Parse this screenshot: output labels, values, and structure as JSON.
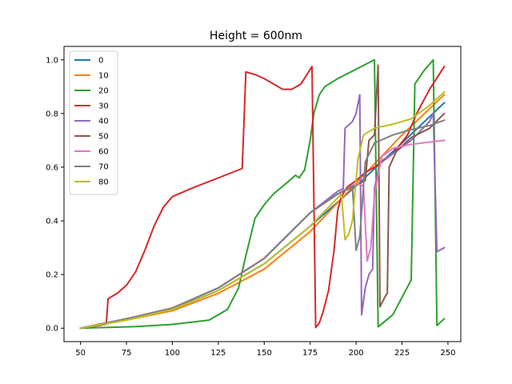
{
  "chart_data": {
    "type": "line",
    "title": "Height = 600nm",
    "xlabel": "",
    "ylabel": "",
    "xlim": [
      41,
      257
    ],
    "ylim": [
      -0.05,
      1.05
    ],
    "xticks": [
      50,
      75,
      100,
      125,
      150,
      175,
      200,
      225,
      250
    ],
    "yticks": [
      0.0,
      0.2,
      0.4,
      0.6,
      0.8,
      1.0
    ],
    "grid": false,
    "legend": "upper-left",
    "series": [
      {
        "name": "0",
        "color": "#1f77b4",
        "points": [
          [
            50,
            0
          ],
          [
            75,
            0.035
          ],
          [
            100,
            0.07
          ],
          [
            125,
            0.14
          ],
          [
            150,
            0.24
          ],
          [
            175,
            0.38
          ],
          [
            200,
            0.53
          ],
          [
            225,
            0.69
          ],
          [
            248,
            0.84
          ]
        ]
      },
      {
        "name": "10",
        "color": "#ff7f0e",
        "points": [
          [
            50,
            0
          ],
          [
            75,
            0.03
          ],
          [
            100,
            0.065
          ],
          [
            125,
            0.13
          ],
          [
            150,
            0.22
          ],
          [
            175,
            0.36
          ],
          [
            200,
            0.54
          ],
          [
            225,
            0.72
          ],
          [
            248,
            0.87
          ]
        ]
      },
      {
        "name": "20",
        "color": "#2ca02c",
        "points": [
          [
            50,
            0
          ],
          [
            80,
            0.006
          ],
          [
            100,
            0.014
          ],
          [
            120,
            0.03
          ],
          [
            130,
            0.07
          ],
          [
            136,
            0.15
          ],
          [
            140,
            0.27
          ],
          [
            145,
            0.41
          ],
          [
            150,
            0.46
          ],
          [
            155,
            0.5
          ],
          [
            162,
            0.54
          ],
          [
            167,
            0.57
          ],
          [
            169,
            0.56
          ],
          [
            172,
            0.59
          ],
          [
            175,
            0.7
          ],
          [
            177,
            0.8
          ],
          [
            180,
            0.87
          ],
          [
            183,
            0.9
          ],
          [
            190,
            0.93
          ],
          [
            200,
            0.965
          ],
          [
            210,
            1.0
          ],
          [
            212,
            0.005
          ],
          [
            220,
            0.05
          ],
          [
            230,
            0.18
          ],
          [
            232,
            0.91
          ],
          [
            237,
            0.96
          ],
          [
            242,
            1.0
          ],
          [
            244,
            0.01
          ],
          [
            248,
            0.035
          ]
        ]
      },
      {
        "name": "30",
        "color": "#d62728",
        "points": [
          [
            50,
            0
          ],
          [
            60,
            0.01
          ],
          [
            64,
            0.015
          ],
          [
            65,
            0.11
          ],
          [
            70,
            0.13
          ],
          [
            75,
            0.16
          ],
          [
            80,
            0.21
          ],
          [
            85,
            0.29
          ],
          [
            90,
            0.38
          ],
          [
            95,
            0.45
          ],
          [
            100,
            0.49
          ],
          [
            110,
            0.52
          ],
          [
            125,
            0.56
          ],
          [
            138,
            0.595
          ],
          [
            140,
            0.955
          ],
          [
            145,
            0.945
          ],
          [
            150,
            0.93
          ],
          [
            160,
            0.89
          ],
          [
            165,
            0.89
          ],
          [
            170,
            0.91
          ],
          [
            176,
            0.975
          ],
          [
            178,
            0.002
          ],
          [
            180,
            0.02
          ],
          [
            182,
            0.06
          ],
          [
            185,
            0.14
          ],
          [
            188,
            0.29
          ],
          [
            190,
            0.44
          ],
          [
            192,
            0.49
          ],
          [
            195,
            0.525
          ],
          [
            200,
            0.55
          ],
          [
            205,
            0.58
          ],
          [
            210,
            0.6
          ],
          [
            220,
            0.65
          ],
          [
            228,
            0.72
          ],
          [
            233,
            0.8
          ],
          [
            240,
            0.89
          ],
          [
            248,
            0.975
          ]
        ]
      },
      {
        "name": "40",
        "color": "#9467bd",
        "points": [
          [
            50,
            0
          ],
          [
            75,
            0.035
          ],
          [
            100,
            0.075
          ],
          [
            125,
            0.15
          ],
          [
            150,
            0.26
          ],
          [
            175,
            0.43
          ],
          [
            190,
            0.51
          ],
          [
            193,
            0.52
          ],
          [
            194,
            0.745
          ],
          [
            198,
            0.77
          ],
          [
            200,
            0.8
          ],
          [
            202,
            0.87
          ],
          [
            203,
            0.05
          ],
          [
            205,
            0.15
          ],
          [
            207,
            0.2
          ],
          [
            209,
            0.22
          ],
          [
            210,
            0.52
          ],
          [
            213,
            0.62
          ],
          [
            220,
            0.65
          ],
          [
            230,
            0.7
          ],
          [
            240,
            0.77
          ],
          [
            242,
            0.8
          ],
          [
            244,
            0.285
          ],
          [
            248,
            0.3
          ]
        ]
      },
      {
        "name": "50",
        "color": "#8c564b",
        "points": [
          [
            50,
            0
          ],
          [
            75,
            0.035
          ],
          [
            100,
            0.075
          ],
          [
            125,
            0.15
          ],
          [
            150,
            0.26
          ],
          [
            175,
            0.43
          ],
          [
            190,
            0.5
          ],
          [
            205,
            0.55
          ],
          [
            207,
            0.7
          ],
          [
            210,
            0.72
          ],
          [
            212,
            0.98
          ],
          [
            213,
            0.08
          ],
          [
            216,
            0.12
          ],
          [
            217,
            0.13
          ],
          [
            218,
            0.6
          ],
          [
            222,
            0.66
          ],
          [
            230,
            0.71
          ],
          [
            240,
            0.745
          ],
          [
            248,
            0.8
          ]
        ]
      },
      {
        "name": "60",
        "color": "#e377c2",
        "points": [
          [
            50,
            0
          ],
          [
            75,
            0.035
          ],
          [
            100,
            0.075
          ],
          [
            125,
            0.15
          ],
          [
            150,
            0.26
          ],
          [
            175,
            0.43
          ],
          [
            190,
            0.5
          ],
          [
            200,
            0.54
          ],
          [
            204,
            0.53
          ],
          [
            206,
            0.25
          ],
          [
            208,
            0.3
          ],
          [
            210,
            0.5
          ],
          [
            214,
            0.64
          ],
          [
            220,
            0.67
          ],
          [
            230,
            0.685
          ],
          [
            248,
            0.7
          ]
        ]
      },
      {
        "name": "70",
        "color": "#7f7f7f",
        "points": [
          [
            50,
            0
          ],
          [
            75,
            0.035
          ],
          [
            100,
            0.075
          ],
          [
            125,
            0.15
          ],
          [
            150,
            0.26
          ],
          [
            175,
            0.43
          ],
          [
            190,
            0.5
          ],
          [
            198,
            0.53
          ],
          [
            200,
            0.29
          ],
          [
            202,
            0.34
          ],
          [
            205,
            0.62
          ],
          [
            210,
            0.69
          ],
          [
            220,
            0.72
          ],
          [
            230,
            0.74
          ],
          [
            240,
            0.755
          ],
          [
            248,
            0.775
          ]
        ]
      },
      {
        "name": "80",
        "color": "#bcbd22",
        "points": [
          [
            50,
            0
          ],
          [
            75,
            0.03
          ],
          [
            100,
            0.07
          ],
          [
            125,
            0.14
          ],
          [
            150,
            0.24
          ],
          [
            175,
            0.38
          ],
          [
            192,
            0.5
          ],
          [
            194,
            0.33
          ],
          [
            196,
            0.35
          ],
          [
            198,
            0.4
          ],
          [
            201,
            0.63
          ],
          [
            204,
            0.72
          ],
          [
            210,
            0.745
          ],
          [
            220,
            0.76
          ],
          [
            230,
            0.78
          ],
          [
            240,
            0.83
          ],
          [
            248,
            0.88
          ]
        ]
      }
    ]
  }
}
